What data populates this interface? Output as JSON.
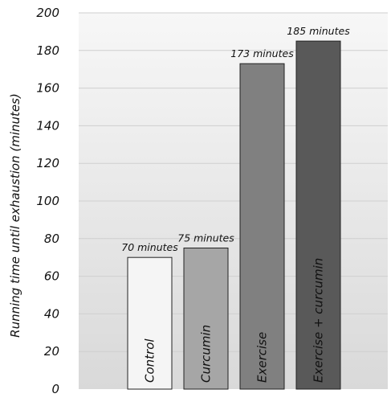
{
  "chart_data": {
    "type": "bar",
    "title": "",
    "xlabel": "",
    "ylabel": "Running time until exhaustion (minutes)",
    "ylim": [
      0,
      200
    ],
    "yticks": [
      0,
      20,
      40,
      60,
      80,
      100,
      120,
      140,
      160,
      180,
      200
    ],
    "categories": [
      "Control",
      "Curcumin",
      "Exercise",
      "Exercise + curcumin"
    ],
    "values": [
      70,
      75,
      173,
      185
    ],
    "data_labels": [
      "70 minutes",
      "75 minutes",
      "173 minutes",
      "185 minutes"
    ],
    "bar_colors": [
      "#f5f5f5",
      "#a6a6a6",
      "#808080",
      "#595959"
    ],
    "bar_label_colors": [
      "#111111",
      "#111111",
      "#111111",
      "#111111"
    ],
    "grid": true,
    "background": "gradient light grey"
  }
}
